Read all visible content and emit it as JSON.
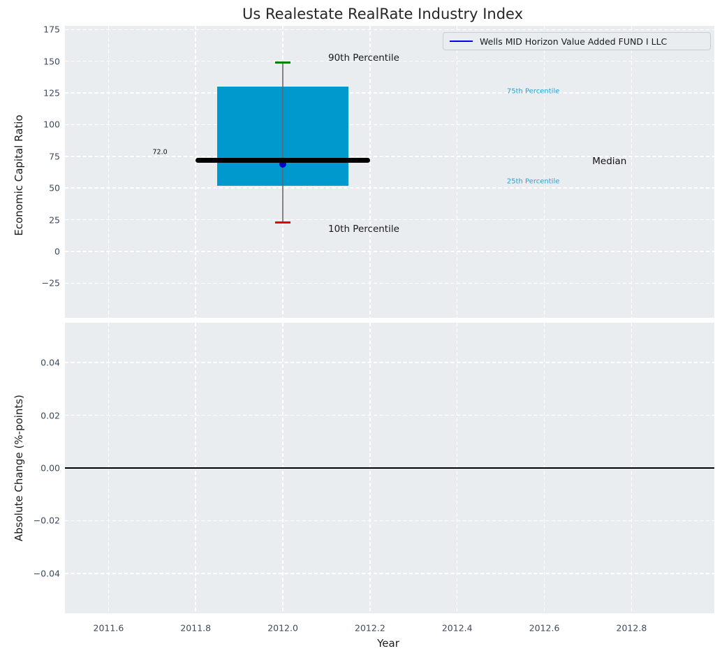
{
  "title": "Us Realestate RealRate Industry Index",
  "legend": {
    "label": "Wells MID Horizon Value Added FUND I LLC",
    "line_color": "#0000ee"
  },
  "colors": {
    "axes_background": "#e9edf0",
    "grid": "#ffffff",
    "tick_label": "#3b4a5d",
    "axis_label": "#1a1a1a",
    "title": "#262626",
    "box_fill": "#0099cd",
    "median_line": "#000000",
    "p90_cap": "#008000",
    "p10_cap": "#ee0000",
    "whisker": "#666666",
    "fund_marker": "#0000cc",
    "percentile_label": "#1da6dc",
    "zero_line": "#000000"
  },
  "chart_data": [
    {
      "type": "box",
      "title": "Us Realestate RealRate Industry Index",
      "ylabel": "Economic Capital Ratio",
      "xlim": [
        2011.5,
        2012.99
      ],
      "ylim": [
        -52.3,
        177.9
      ],
      "grid": "white-dashed",
      "legend_position": "upper right",
      "yticks": [
        {
          "value": 175,
          "label": "175"
        },
        {
          "value": 150,
          "label": "150"
        },
        {
          "value": 125,
          "label": "125"
        },
        {
          "value": 100,
          "label": "100"
        },
        {
          "value": 75,
          "label": "75"
        },
        {
          "value": 50,
          "label": "50"
        },
        {
          "value": 25,
          "label": "25"
        },
        {
          "value": 0,
          "label": "0"
        },
        {
          "value": -25,
          "label": "−25"
        }
      ],
      "xgrid": [
        2011.6,
        2011.8,
        2012.0,
        2012.2,
        2012.4,
        2012.6,
        2012.8
      ],
      "box": {
        "x": 2012.0,
        "p10": 23,
        "p25": 52,
        "median": 72.0,
        "p75": 130,
        "p90": 149,
        "median_label": "72.0",
        "fund_value": 72.0,
        "box_x_start": 2011.85,
        "box_x_end": 2012.15,
        "median_x_start": 2011.8,
        "median_x_end": 2012.2,
        "cap_half_width": 0.018
      },
      "annotations": [
        {
          "name": "annotation-90th-percentile",
          "text": "90th Percentile",
          "x": 2012.104,
          "y": 152.5,
          "color": "#1a1a1a",
          "size": 13.5,
          "align": "left"
        },
        {
          "name": "annotation-10th-percentile",
          "text": "10th Percentile",
          "x": 2012.104,
          "y": 17.8,
          "color": "#1a1a1a",
          "size": 13.5,
          "align": "left"
        },
        {
          "name": "annotation-75th-percentile",
          "text": "75th Percentile",
          "x": 2012.514,
          "y": 126,
          "color": "#1da6dc",
          "size": 10,
          "align": "left"
        },
        {
          "name": "annotation-25th-percentile",
          "text": "25th Percentile",
          "x": 2012.514,
          "y": 55,
          "color": "#1da6dc",
          "size": 10,
          "align": "left"
        },
        {
          "name": "annotation-median",
          "text": "Median",
          "x": 2012.71,
          "y": 71,
          "color": "#111111",
          "size": 13.5,
          "align": "left"
        },
        {
          "name": "median-value-label",
          "text": "72.0",
          "x": 2011.735,
          "y": 78,
          "color": "#111111",
          "size": 9.5,
          "align": "right"
        }
      ]
    },
    {
      "type": "line",
      "ylabel": "Absolute Change (%-points)",
      "xlabel": "Year",
      "xlim": [
        2011.5,
        2012.99
      ],
      "ylim": [
        -0.0551,
        0.0551
      ],
      "grid": "white-dashed",
      "yticks": [
        {
          "value": 0.04,
          "label": "0.04"
        },
        {
          "value": 0.02,
          "label": "0.02"
        },
        {
          "value": 0,
          "label": "0.00"
        },
        {
          "value": -0.02,
          "label": "−0.02"
        },
        {
          "value": -0.04,
          "label": "−0.04"
        }
      ],
      "xticks": [
        {
          "value": 2011.6,
          "label": "2011.6"
        },
        {
          "value": 2011.8,
          "label": "2011.8"
        },
        {
          "value": 2012.0,
          "label": "2012.0"
        },
        {
          "value": 2012.2,
          "label": "2012.2"
        },
        {
          "value": 2012.4,
          "label": "2012.4"
        },
        {
          "value": 2012.6,
          "label": "2012.6"
        },
        {
          "value": 2012.8,
          "label": "2012.8"
        }
      ],
      "zero_line": {
        "y": 0
      },
      "series": [
        {
          "name": "Wells MID Horizon Value Added FUND I LLC",
          "x": [],
          "values": []
        }
      ]
    }
  ]
}
